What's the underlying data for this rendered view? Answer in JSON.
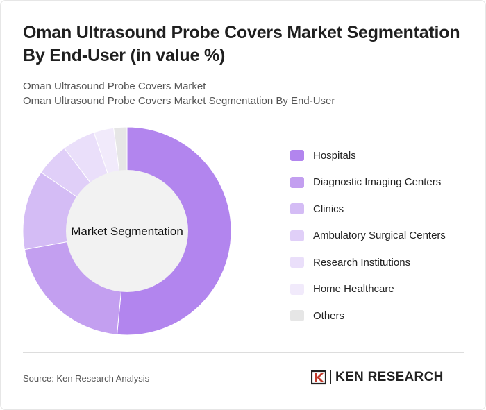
{
  "title": "Oman Ultrasound Probe Covers Market Segmentation By End-User (in value %)",
  "subtitle": {
    "line1": "Oman Ultrasound Probe Covers Market",
    "line2": "Oman Ultrasound Probe Covers Market Segmentation By End-User"
  },
  "chart_data": {
    "type": "pie",
    "center_label": "Market Segmentation",
    "categories": [
      "Hospitals",
      "Diagnostic Imaging Centers",
      "Clinics",
      "Ambulatory Surgical Centers",
      "Research Institutions",
      "Home Healthcare",
      "Others"
    ],
    "values": [
      50,
      20,
      12,
      5,
      5,
      3,
      2
    ],
    "colors": [
      "#b285ee",
      "#c39ff0",
      "#d4bcf5",
      "#e0cff8",
      "#eadffa",
      "#f1eafb",
      "#e6e6e6"
    ]
  },
  "footer": {
    "source": "Source: Ken Research Analysis",
    "brand": "KEN RESEARCH"
  }
}
